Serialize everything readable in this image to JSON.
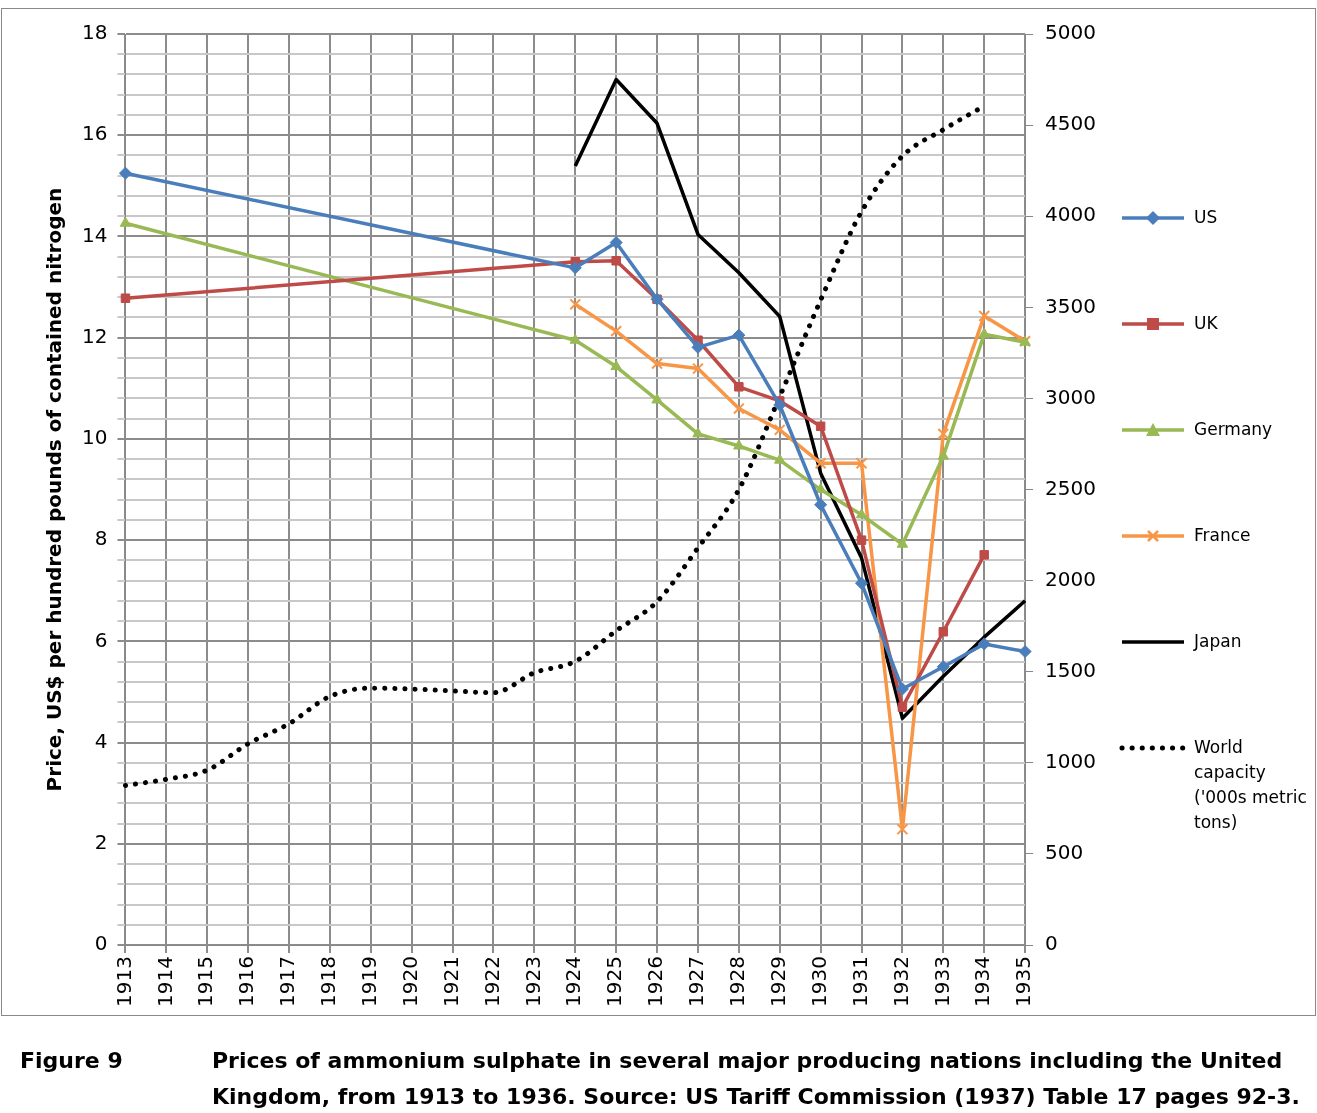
{
  "chart_data": {
    "type": "line",
    "ylabel": "Price, US$ per hundred pounds of contained nitrogen",
    "annotations": [
      "Figure 9",
      "Prices of ammonium sulphate in several major producing nations including the United Kingdom, from 1913 to 1936. Source: US Tariff Commission (1937) Table 17 pages 92-3."
    ],
    "categories": [
      "1913",
      "1914",
      "1915",
      "1916",
      "1917",
      "1918",
      "1919",
      "1920",
      "1921",
      "1922",
      "1923",
      "1924",
      "1925",
      "1926",
      "1927",
      "1928",
      "1929",
      "1930",
      "1931",
      "1932",
      "1933",
      "1934",
      "1935"
    ],
    "ylim": [
      0,
      18
    ],
    "yticks": [
      0,
      {
        "value": 0.4,
        "label": null
      },
      {
        "value": 0.8,
        "label": null
      },
      {
        "value": 1.2,
        "label": null
      },
      {
        "value": 1.6,
        "label": null
      },
      2,
      {
        "value": 2.4,
        "label": null
      },
      {
        "value": 2.8,
        "label": null
      },
      {
        "value": 3.2,
        "label": null
      },
      {
        "value": 3.6,
        "label": null
      },
      4,
      {
        "value": 4.4,
        "label": null
      },
      {
        "value": 4.8,
        "label": null
      },
      {
        "value": 5.2,
        "label": null
      },
      {
        "value": 5.6,
        "label": null
      },
      6,
      {
        "value": 6.4,
        "label": null
      },
      {
        "value": 6.8,
        "label": null
      },
      {
        "value": 7.2,
        "label": null
      },
      {
        "value": 7.6,
        "label": null
      },
      8,
      {
        "value": 8.4,
        "label": null
      },
      {
        "value": 8.8,
        "label": null
      },
      {
        "value": 9.2,
        "label": null
      },
      {
        "value": 9.6,
        "label": null
      },
      10,
      {
        "value": 10.4,
        "label": null
      },
      {
        "value": 10.8,
        "label": null
      },
      {
        "value": 11.2,
        "label": null
      },
      {
        "value": 11.6,
        "label": null
      },
      12,
      {
        "value": 12.4,
        "label": null
      },
      {
        "value": 12.8,
        "label": null
      },
      {
        "value": 13.2,
        "label": null
      },
      {
        "value": 13.6,
        "label": null
      },
      14,
      {
        "value": 14.4,
        "label": null
      },
      {
        "value": 14.8,
        "label": null
      },
      {
        "value": 15.2,
        "label": null
      },
      {
        "value": 15.6,
        "label": null
      },
      16,
      {
        "value": 16.4,
        "label": null
      },
      {
        "value": 16.8,
        "label": null
      },
      {
        "value": 17.2,
        "label": null
      },
      {
        "value": 17.6,
        "label": null
      },
      18
    ],
    "y2lim": [
      0,
      5000
    ],
    "y2ticks": [
      0,
      500,
      1000,
      1500,
      2000,
      2500,
      3000,
      3500,
      4000,
      4500,
      5000
    ],
    "grid": true,
    "legend": "right",
    "series": [
      {
        "name": "US",
        "color": "#4a7ebb",
        "marker": "diamond",
        "values": [
          15.25,
          null,
          null,
          null,
          null,
          null,
          null,
          null,
          null,
          null,
          null,
          13.38,
          13.88,
          12.76,
          11.81,
          12.05,
          10.67,
          8.7,
          7.15,
          5.06,
          5.5,
          5.95,
          5.8
        ]
      },
      {
        "name": "UK",
        "color": "#be4b48",
        "marker": "square",
        "values": [
          12.78,
          null,
          null,
          null,
          null,
          null,
          null,
          null,
          null,
          null,
          null,
          13.5,
          13.52,
          12.76,
          11.95,
          11.03,
          10.75,
          10.25,
          8.0,
          4.7,
          6.19,
          7.71,
          null
        ]
      },
      {
        "name": "Germany",
        "color": "#98b954",
        "marker": "triangle",
        "values": [
          14.26,
          null,
          null,
          null,
          null,
          null,
          null,
          null,
          null,
          null,
          null,
          11.95,
          11.43,
          10.77,
          10.1,
          9.86,
          9.58,
          9.0,
          8.5,
          7.92,
          9.66,
          12.07,
          11.91
        ]
      },
      {
        "name": "France",
        "color": "#f79646",
        "marker": "cross",
        "values": [
          null,
          null,
          null,
          null,
          null,
          null,
          null,
          null,
          null,
          null,
          null,
          12.66,
          12.13,
          11.49,
          11.39,
          10.6,
          10.18,
          9.52,
          9.52,
          2.29,
          10.1,
          12.43,
          11.93
        ]
      },
      {
        "name": "Japan",
        "color": "#000000",
        "marker": "none",
        "axis": "y2",
        "values": [
          null,
          null,
          null,
          null,
          null,
          null,
          null,
          null,
          null,
          null,
          null,
          4275,
          4750,
          4510,
          3900,
          3690,
          3450,
          2590,
          2125,
          1245,
          1475,
          1690,
          1890
        ]
      },
      {
        "name": "World capacity ('000s metric tons)",
        "color": "#000000",
        "marker": "none",
        "line_style": "dotted",
        "axis": "y2",
        "values": [
          876,
          910,
          960,
          1105,
          1215,
          1365,
          1410,
          1405,
          1395,
          1385,
          1495,
          1557,
          1725,
          1885,
          2180,
          2500,
          3010,
          3540,
          4025,
          4330,
          4475,
          4605,
          null
        ]
      }
    ]
  }
}
